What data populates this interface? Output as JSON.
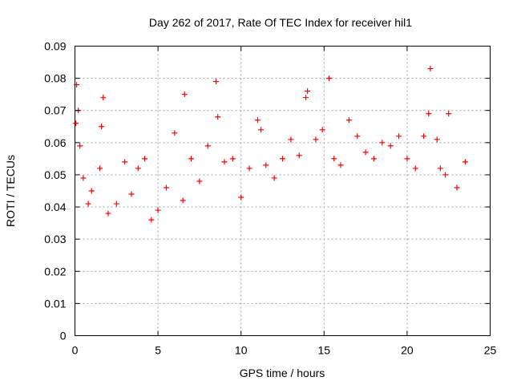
{
  "chart_data": {
    "type": "scatter",
    "title": "Day 262 of 2017, Rate Of TEC Index for receiver hil1",
    "xlabel": "GPS time / hours",
    "ylabel": "ROTI / TECUs",
    "xlim": [
      0,
      25
    ],
    "ylim": [
      0,
      0.09
    ],
    "x_ticks": [
      "0",
      "5",
      "10",
      "15",
      "20",
      "25"
    ],
    "y_ticks": [
      "0",
      "0.01",
      "0.02",
      "0.03",
      "0.04",
      "0.05",
      "0.06",
      "0.07",
      "0.08",
      "0.09"
    ],
    "grid": true,
    "marker": "+",
    "color": "#ff0000",
    "series": [
      {
        "x": [
          0.05,
          0.1,
          0.2,
          0.3,
          0.5,
          0.8,
          1.0,
          1.5,
          1.6,
          1.7,
          2.0,
          2.5,
          3.0,
          3.4,
          3.8,
          4.2,
          4.6,
          5.0,
          5.5,
          6.0,
          6.5,
          6.6,
          7.0,
          7.5,
          8.0,
          8.5,
          8.6,
          9.0,
          9.5,
          10.0,
          10.5,
          11.0,
          11.2,
          11.5,
          12.0,
          12.5,
          13.0,
          13.5,
          13.9,
          14.0,
          14.5,
          14.9,
          15.3,
          15.6,
          16.0,
          16.5,
          17.0,
          17.5,
          18.0,
          18.5,
          19.0,
          19.5,
          20.0,
          20.5,
          21.0,
          21.3,
          21.4,
          21.8,
          22.0,
          22.3,
          22.5,
          23.0,
          23.5
        ],
        "y": [
          0.066,
          0.078,
          0.07,
          0.059,
          0.049,
          0.041,
          0.045,
          0.052,
          0.065,
          0.074,
          0.038,
          0.041,
          0.054,
          0.044,
          0.052,
          0.055,
          0.036,
          0.039,
          0.046,
          0.063,
          0.042,
          0.075,
          0.055,
          0.048,
          0.059,
          0.079,
          0.068,
          0.054,
          0.055,
          0.043,
          0.052,
          0.067,
          0.064,
          0.053,
          0.049,
          0.055,
          0.061,
          0.056,
          0.074,
          0.076,
          0.061,
          0.064,
          0.08,
          0.055,
          0.053,
          0.067,
          0.062,
          0.057,
          0.055,
          0.06,
          0.059,
          0.062,
          0.055,
          0.052,
          0.062,
          0.069,
          0.083,
          0.061,
          0.052,
          0.05,
          0.069,
          0.046,
          0.054
        ]
      }
    ]
  }
}
